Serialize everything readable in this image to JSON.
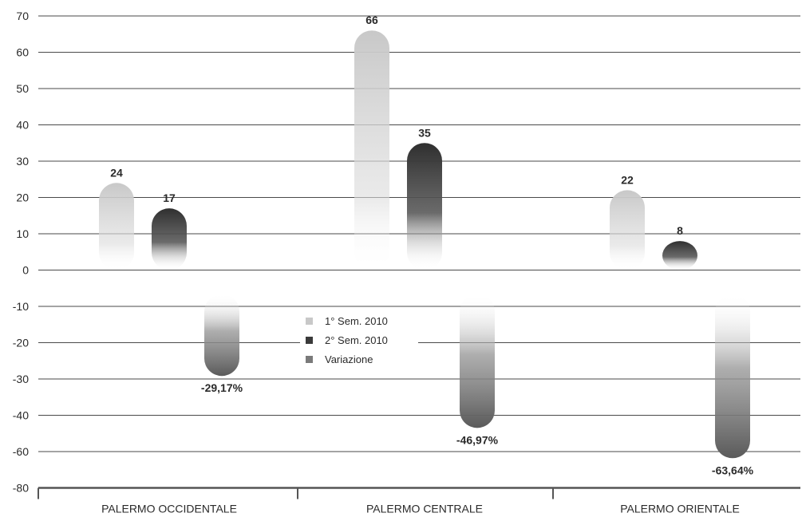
{
  "chart_data": {
    "type": "bar",
    "title": "",
    "xlabel": "",
    "ylabel": "",
    "y_ticks": [
      "70",
      "60",
      "50",
      "40",
      "30",
      "20",
      "10",
      "0",
      "-10",
      "-20",
      "-30",
      "-40",
      "-60",
      "-80"
    ],
    "categories": [
      "PALERMO OCCIDENTALE",
      "PALERMO CENTRALE",
      "PALERMO ORIENTALE"
    ],
    "series": [
      {
        "name": "1° Sem. 2010",
        "values": [
          24,
          66,
          22
        ],
        "labels": [
          "24",
          "66",
          "22"
        ],
        "color": "#c8c8c8"
      },
      {
        "name": "2° Sem. 2010",
        "values": [
          17,
          35,
          8
        ],
        "labels": [
          "17",
          "35",
          "8"
        ],
        "color": "#3a3a3a"
      },
      {
        "name": "Variazione",
        "values": [
          -29.17,
          -46.97,
          -63.64
        ],
        "labels": [
          "-29,17%",
          "-46,97%",
          "-63,64%"
        ],
        "color": "#6e6e6e"
      }
    ],
    "grid": true,
    "legend_position": "center"
  }
}
